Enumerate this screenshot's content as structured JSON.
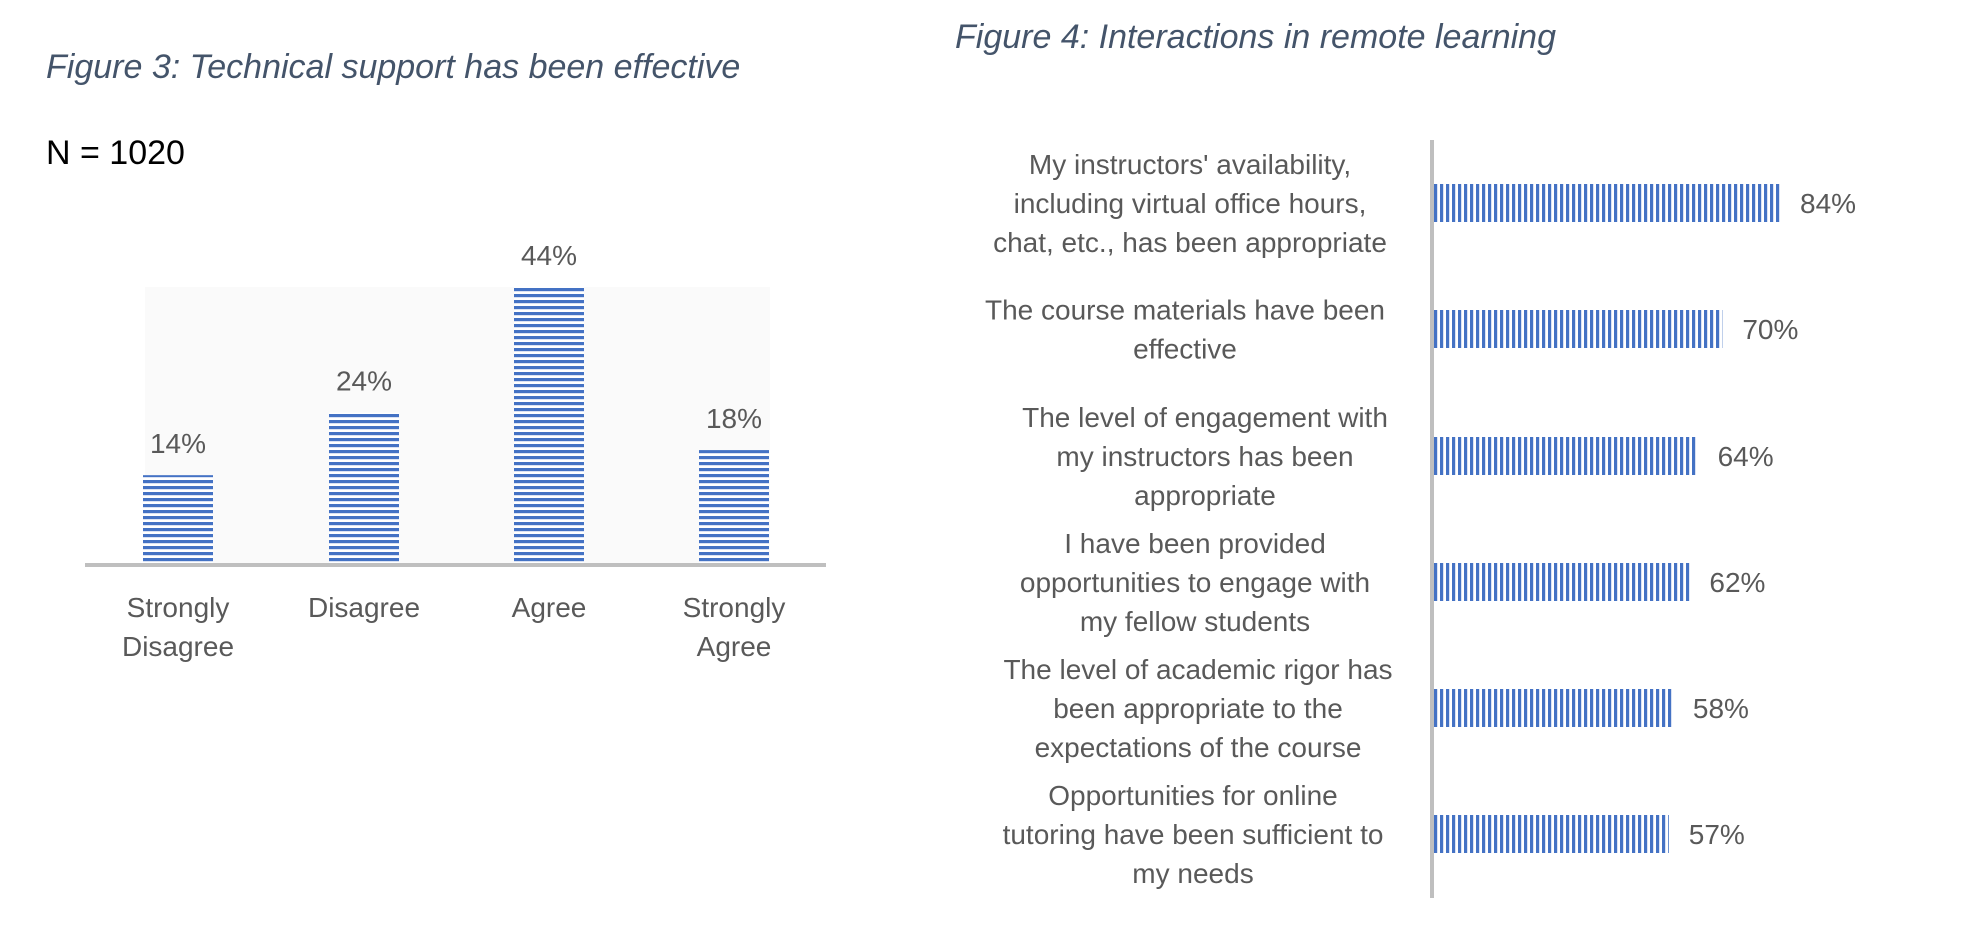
{
  "figure3": {
    "title": "Figure 3: Technical support has been effective",
    "n_label": "N = 1020"
  },
  "figure4": {
    "title": "Figure 4: Interactions in remote learning"
  },
  "colors": {
    "bar": "#4472c4",
    "axis": "#bfbfbf",
    "title": "#44546a",
    "text": "#595959",
    "plot_bg": "#fafafa"
  },
  "chart_data": [
    {
      "type": "bar",
      "orientation": "vertical",
      "categories": [
        [
          "Strongly",
          "Disagree"
        ],
        [
          "Disagree"
        ],
        [
          "Agree"
        ],
        [
          "Strongly",
          "Agree"
        ]
      ],
      "values": [
        14,
        24,
        44,
        18
      ],
      "value_labels": [
        "14%",
        "24%",
        "44%",
        "18%"
      ],
      "title": "Figure 3: Technical support has been effective",
      "ylim": [
        0,
        44
      ],
      "grid": false,
      "legend": "none"
    },
    {
      "type": "bar",
      "orientation": "horizontal",
      "categories": [
        [
          "My instructors' availability,",
          "including virtual office hours,",
          "chat, etc., has been appropriate"
        ],
        [
          "The course materials have been",
          "effective"
        ],
        [
          "The level of engagement with",
          "my instructors has been",
          "appropriate"
        ],
        [
          "I have been provided",
          "opportunities to engage with",
          "my fellow students"
        ],
        [
          "The level of academic rigor has",
          "been appropriate to the",
          "expectations of the course"
        ],
        [
          "Opportunities for online",
          "tutoring have been sufficient to",
          "my needs"
        ]
      ],
      "values": [
        84,
        70,
        64,
        62,
        58,
        57
      ],
      "value_labels": [
        "84%",
        "70%",
        "64%",
        "62%",
        "58%",
        "57%"
      ],
      "title": "Figure 4: Interactions in remote learning",
      "xlim": [
        0,
        84
      ],
      "grid": false,
      "legend": "none"
    }
  ]
}
